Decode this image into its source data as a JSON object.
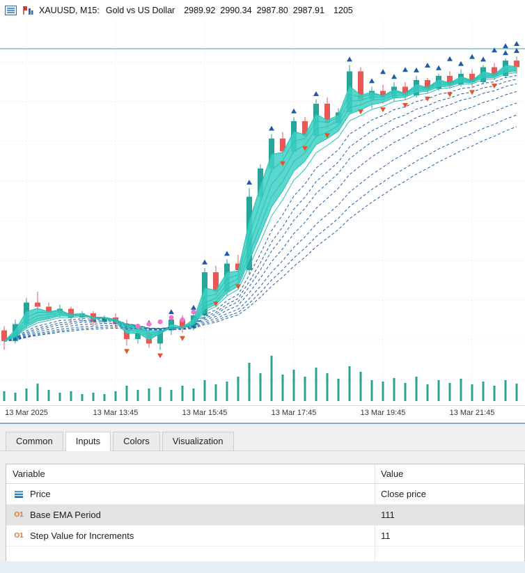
{
  "header": {
    "symbol": "XAUUSD, M15:",
    "description": "Gold vs US Dollar",
    "open": "2989.92",
    "high": "2990.34",
    "low": "2987.80",
    "close": "2987.91",
    "volume": "1205",
    "icons": [
      "quotes-list-icon",
      "mini-chart-icon"
    ]
  },
  "chart_data": {
    "type": "candlestick",
    "title": "XAUUSD M15 Gold vs US Dollar with EMA fan indicator and volume",
    "x_labels": [
      "13 Mar 2025",
      "13 Mar 13:45",
      "13 Mar 15:45",
      "13 Mar 17:45",
      "13 Mar 19:45",
      "13 Mar 21:45"
    ],
    "x_label_indices": [
      2,
      10,
      18,
      26,
      34,
      42
    ],
    "candles": [
      [
        2933.5,
        2934.5,
        2929.0,
        2931.0
      ],
      [
        2931.0,
        2936.0,
        2930.5,
        2935.0
      ],
      [
        2935.0,
        2941.0,
        2934.0,
        2940.0
      ],
      [
        2940.0,
        2942.5,
        2937.5,
        2939.0
      ],
      [
        2939.0,
        2940.0,
        2936.0,
        2937.5
      ],
      [
        2937.5,
        2939.5,
        2936.5,
        2938.5
      ],
      [
        2938.5,
        2939.0,
        2935.5,
        2936.5
      ],
      [
        2936.5,
        2938.0,
        2935.5,
        2937.5
      ],
      [
        2937.5,
        2938.0,
        2934.5,
        2935.5
      ],
      [
        2935.5,
        2937.0,
        2935.0,
        2936.5
      ],
      [
        2936.5,
        2937.5,
        2934.0,
        2935.0
      ],
      [
        2935.0,
        2936.0,
        2930.0,
        2931.5
      ],
      [
        2931.5,
        2933.5,
        2930.5,
        2933.0
      ],
      [
        2933.0,
        2934.0,
        2929.5,
        2930.5
      ],
      [
        2930.5,
        2934.0,
        2929.0,
        2933.5
      ],
      [
        2933.5,
        2936.5,
        2932.5,
        2936.0
      ],
      [
        2936.0,
        2937.0,
        2933.0,
        2934.0
      ],
      [
        2934.0,
        2937.5,
        2933.5,
        2937.0
      ],
      [
        2937.0,
        2948.0,
        2936.0,
        2947.0
      ],
      [
        2947.0,
        2948.5,
        2941.0,
        2942.5
      ],
      [
        2942.5,
        2950.0,
        2941.5,
        2949.0
      ],
      [
        2949.0,
        2951.0,
        2945.0,
        2947.5
      ],
      [
        2947.5,
        2966.5,
        2946.5,
        2964.5
      ],
      [
        2964.5,
        2972.0,
        2963.0,
        2971.0
      ],
      [
        2971.0,
        2979.0,
        2970.0,
        2978.0
      ],
      [
        2978.0,
        2979.5,
        2973.5,
        2975.0
      ],
      [
        2975.0,
        2983.0,
        2974.5,
        2982.0
      ],
      [
        2982.0,
        2983.0,
        2977.0,
        2978.5
      ],
      [
        2978.5,
        2987.0,
        2978.0,
        2986.0
      ],
      [
        2986.0,
        2987.5,
        2980.0,
        2981.5
      ],
      [
        2981.5,
        2985.0,
        2980.5,
        2984.0
      ],
      [
        2984.0,
        2995.0,
        2983.5,
        2993.5
      ],
      [
        2993.5,
        2994.5,
        2985.5,
        2987.0
      ],
      [
        2987.0,
        2990.0,
        2985.0,
        2989.0
      ],
      [
        2989.0,
        2990.5,
        2986.0,
        2987.5
      ],
      [
        2987.5,
        2991.0,
        2986.5,
        2990.0
      ],
      [
        2990.0,
        2991.0,
        2987.0,
        2988.0
      ],
      [
        2988.0,
        2992.5,
        2987.5,
        2991.5
      ],
      [
        2991.5,
        2992.0,
        2988.5,
        2989.5
      ],
      [
        2989.5,
        2993.0,
        2989.0,
        2992.5
      ],
      [
        2992.5,
        2993.5,
        2989.5,
        2990.5
      ],
      [
        2990.5,
        2994.0,
        2990.0,
        2993.0
      ],
      [
        2993.0,
        2994.0,
        2990.0,
        2991.0
      ],
      [
        2991.0,
        2995.0,
        2990.5,
        2994.5
      ],
      [
        2994.5,
        2995.5,
        2991.5,
        2992.5
      ],
      [
        2992.5,
        2996.5,
        2992.0,
        2996.0
      ],
      [
        2996.0,
        2997.0,
        2993.0,
        2994.5
      ]
    ],
    "volume": [
      14,
      12,
      18,
      25,
      16,
      12,
      14,
      10,
      12,
      10,
      14,
      22,
      16,
      18,
      20,
      16,
      22,
      18,
      30,
      24,
      28,
      35,
      55,
      40,
      65,
      38,
      45,
      35,
      48,
      40,
      32,
      50,
      42,
      30,
      28,
      33,
      26,
      35,
      24,
      30,
      26,
      32,
      24,
      28,
      22,
      30,
      25
    ],
    "ema_periods_cyan": [
      2,
      3,
      4,
      5,
      6,
      7
    ],
    "ema_periods_blue": [
      9,
      11,
      13,
      16,
      20,
      24,
      28
    ],
    "band_periods": [
      2,
      6
    ],
    "markers": {
      "up": [
        13,
        15,
        17,
        18,
        20,
        22,
        24,
        26,
        28,
        31,
        33,
        35,
        37,
        39,
        41,
        43,
        45,
        46
      ],
      "up_row2": [
        34,
        36,
        38,
        40,
        42,
        44,
        45,
        46
      ],
      "down": [
        11,
        14,
        16,
        19,
        21,
        25,
        27,
        29,
        32,
        34,
        36,
        38,
        40,
        42,
        44
      ],
      "pink_dots": [
        {
          "i": 12,
          "p": 2934.5
        },
        {
          "i": 13,
          "p": 2935.0
        },
        {
          "i": 14,
          "p": 2935.5
        },
        {
          "i": 15,
          "p": 2936.5
        },
        {
          "i": 16,
          "p": 2936.0
        },
        {
          "i": 17,
          "p": 2937.8
        }
      ]
    },
    "colors": {
      "bull": "#26A69A",
      "bear": "#E95757",
      "ribbon": "#3ED1C6",
      "ema_cyan": "#2BBFB4",
      "ema_blue": "#1F5FA8",
      "arrow_up": "#1E5AA8",
      "arrow_down": "#E2542B",
      "dot_pink": "#F273C8",
      "volume": "#2AA191",
      "grid": "#DEDEDE",
      "top_line": "#2FA3A3"
    }
  },
  "panel": {
    "tabs": [
      "Common",
      "Inputs",
      "Colors",
      "Visualization"
    ],
    "active_tab": "Inputs",
    "table": {
      "columns": [
        "Variable",
        "Value"
      ],
      "rows": [
        {
          "icon": "price-icon",
          "icon_text": "",
          "variable": "Price",
          "value": "Close price",
          "selected": false
        },
        {
          "icon": "integer-input-icon",
          "icon_text": "O1",
          "variable": "Base EMA Period",
          "value": "111",
          "selected": true
        },
        {
          "icon": "integer-input-icon",
          "icon_text": "O1",
          "variable": "Step Value for Increments",
          "value": "11",
          "selected": false
        }
      ]
    }
  }
}
